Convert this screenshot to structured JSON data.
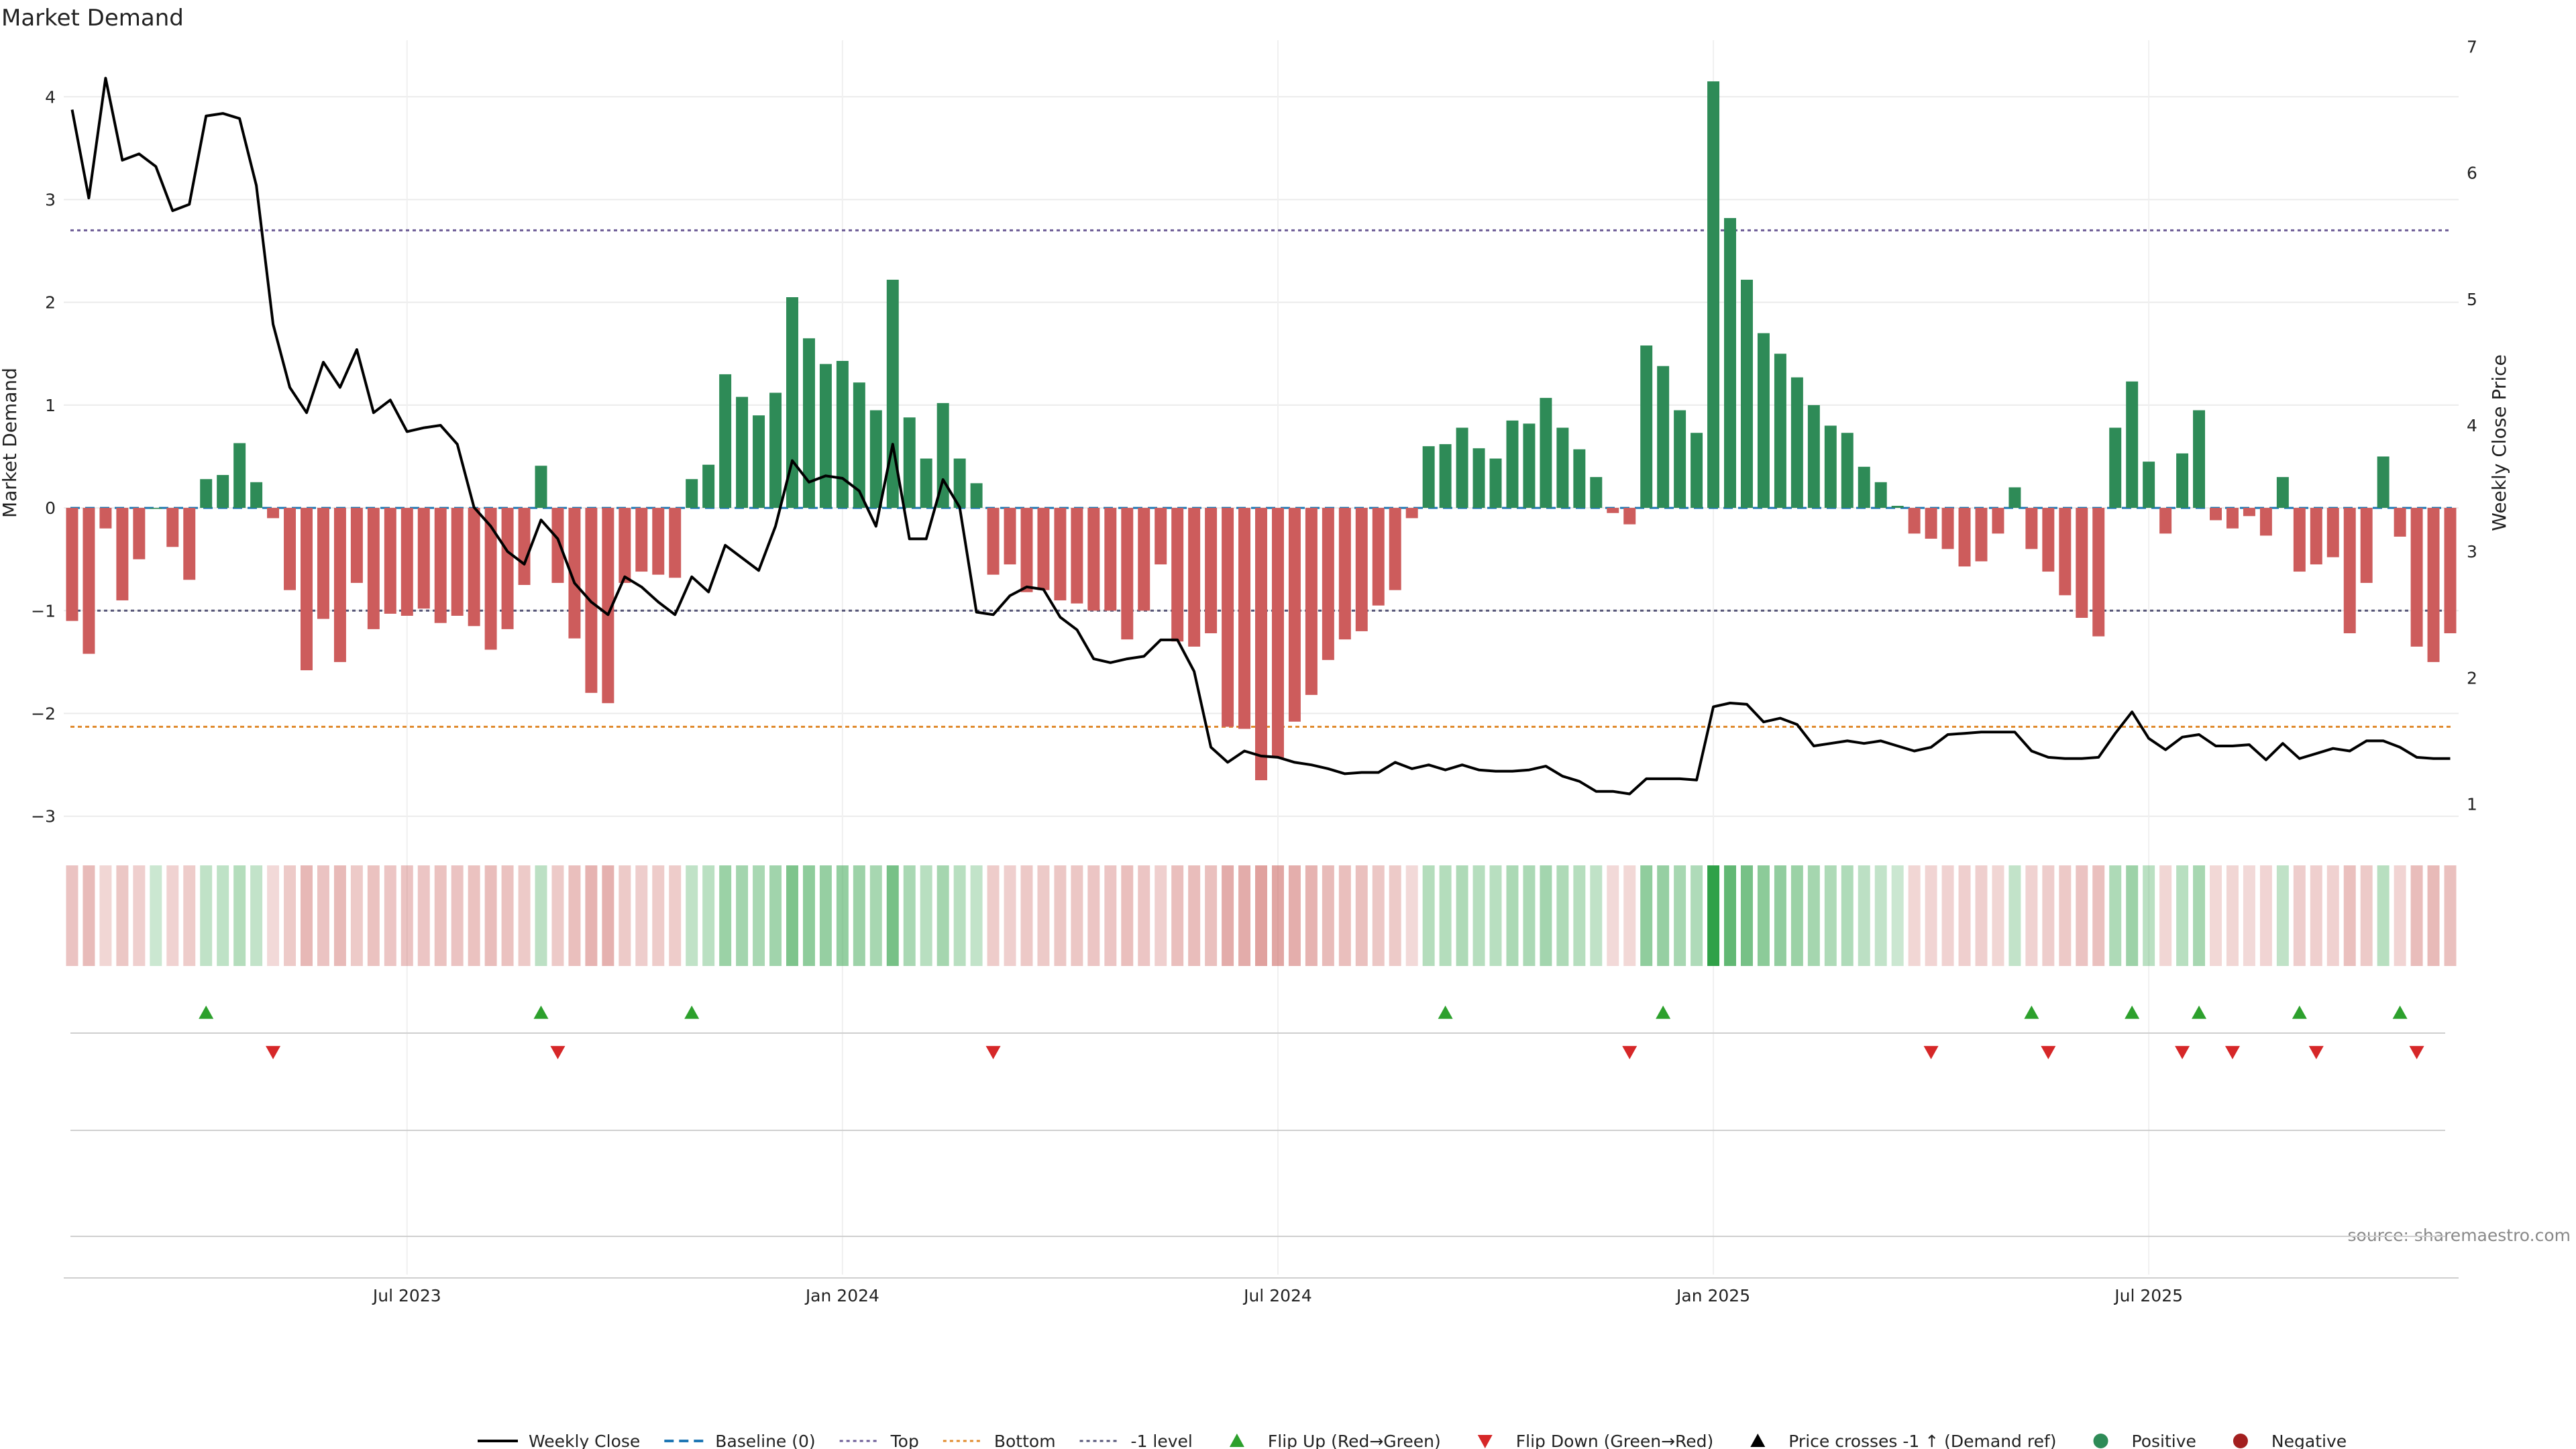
{
  "chart_data": {
    "type": "bar",
    "title": "Market Demand",
    "ylabel": "Market Demand",
    "y2label": "Weekly Close Price",
    "source": "source: sharemaestro.com",
    "ylim": [
      -3.25,
      4.55
    ],
    "y2lim": [
      0.7,
      7.05
    ],
    "y_ticks": [
      -3,
      -2,
      -1,
      0,
      1,
      2,
      3,
      4
    ],
    "y2_ticks": [
      1,
      2,
      3,
      4,
      5,
      6,
      7
    ],
    "x_ticks": [
      {
        "label": "Jul 2023",
        "index": 20
      },
      {
        "label": "Jan 2024",
        "index": 46
      },
      {
        "label": "Jul 2024",
        "index": 72
      },
      {
        "label": "Jan 2025",
        "index": 98
      },
      {
        "label": "Jul 2025",
        "index": 124
      }
    ],
    "reference_lines": {
      "top": 2.7,
      "bottom": -2.13,
      "minus_one": -1.0,
      "baseline": 0
    },
    "colors": {
      "positive": "#2e8b57",
      "negative": "#cd5c5c",
      "price": "#000000",
      "top": "#6b5b95",
      "bottom": "#e08a2c",
      "minus_one": "#555577",
      "baseline": "#1f77b4",
      "flip_up": "#2ca02c",
      "flip_down": "#d62728"
    },
    "demand": [
      -1.1,
      -1.42,
      -0.2,
      -0.9,
      -0.5,
      0,
      -0.38,
      -0.7,
      0.28,
      0.32,
      0.63,
      0.25,
      -0.1,
      -0.8,
      -1.58,
      -1.08,
      -1.5,
      -0.73,
      -1.18,
      -1.03,
      -1.05,
      -0.98,
      -1.12,
      -1.05,
      -1.15,
      -1.38,
      -1.18,
      -0.75,
      0.41,
      -0.73,
      -1.27,
      -1.8,
      -1.9,
      -0.73,
      -0.62,
      -0.65,
      -0.68,
      0.28,
      0.42,
      1.3,
      1.08,
      0.9,
      1.12,
      2.05,
      1.65,
      1.4,
      1.43,
      1.22,
      0.95,
      2.22,
      0.88,
      0.48,
      1.02,
      0.48,
      0.24,
      -0.65,
      -0.55,
      -0.82,
      -0.8,
      -0.9,
      -0.93,
      -1.0,
      -1.0,
      -1.28,
      -1.0,
      -0.55,
      -1.3,
      -1.35,
      -1.22,
      -2.13,
      -2.15,
      -2.65,
      -2.43,
      -2.08,
      -1.82,
      -1.48,
      -1.28,
      -1.2,
      -0.95,
      -0.8,
      -0.1,
      0.6,
      0.62,
      0.78,
      0.58,
      0.48,
      0.85,
      0.82,
      1.07,
      0.78,
      0.57,
      0.3,
      -0.05,
      -0.16,
      1.58,
      1.38,
      0.95,
      0.73,
      4.15,
      2.82,
      2.22,
      1.7,
      1.5,
      1.27,
      1.0,
      0.8,
      0.73,
      0.4,
      0.25,
      0.02,
      -0.25,
      -0.3,
      -0.4,
      -0.57,
      -0.52,
      -0.25,
      0.2,
      -0.4,
      -0.62,
      -0.85,
      -1.07,
      -1.25,
      0.78,
      1.23,
      0.45,
      -0.25,
      0.53,
      0.95,
      -0.12,
      -0.2,
      -0.08,
      -0.27,
      0.3,
      -0.62,
      -0.55,
      -0.48,
      -1.22,
      -0.73,
      0.5,
      -0.28,
      -1.35,
      -1.5,
      -1.22
    ],
    "price": [
      6.5,
      5.8,
      6.75,
      6.1,
      6.15,
      6.05,
      5.7,
      5.75,
      6.45,
      6.47,
      6.43,
      5.9,
      4.8,
      4.3,
      4.1,
      4.5,
      4.3,
      4.6,
      4.1,
      4.2,
      3.95,
      3.98,
      4.0,
      3.85,
      3.35,
      3.2,
      3.0,
      2.9,
      3.25,
      3.1,
      2.75,
      2.6,
      2.5,
      2.8,
      2.72,
      2.6,
      2.5,
      2.8,
      2.68,
      3.05,
      2.95,
      2.85,
      3.2,
      3.72,
      3.55,
      3.6,
      3.58,
      3.48,
      3.2,
      3.85,
      3.1,
      3.1,
      3.57,
      3.35,
      2.52,
      2.5,
      2.65,
      2.72,
      2.7,
      2.48,
      2.38,
      2.15,
      2.12,
      2.15,
      2.17,
      2.3,
      2.3,
      2.05,
      1.45,
      1.33,
      1.42,
      1.38,
      1.37,
      1.33,
      1.31,
      1.28,
      1.24,
      1.25,
      1.25,
      1.33,
      1.28,
      1.31,
      1.27,
      1.31,
      1.27,
      1.26,
      1.26,
      1.27,
      1.3,
      1.22,
      1.18,
      1.1,
      1.1,
      1.08,
      1.2,
      1.2,
      1.2,
      1.19,
      1.77,
      1.8,
      1.79,
      1.65,
      1.68,
      1.63,
      1.46,
      1.48,
      1.5,
      1.48,
      1.5,
      1.46,
      1.42,
      1.45,
      1.55,
      1.56,
      1.57,
      1.57,
      1.57,
      1.42,
      1.37,
      1.36,
      1.36,
      1.37,
      1.56,
      1.73,
      1.52,
      1.43,
      1.53,
      1.55,
      1.46,
      1.46,
      1.47,
      1.35,
      1.48,
      1.36,
      1.4,
      1.44,
      1.42,
      1.5,
      1.5,
      1.45,
      1.37,
      1.36,
      1.36
    ],
    "flip_up": [
      8,
      28,
      37,
      82,
      95,
      117,
      123,
      127,
      133,
      139
    ],
    "flip_down": [
      12,
      29,
      55,
      93,
      111,
      118,
      126,
      129,
      134,
      140
    ],
    "legend": [
      {
        "label": "Weekly Close",
        "kind": "line",
        "color": "#000000"
      },
      {
        "label": "Baseline (0)",
        "kind": "dash",
        "color": "#1f77b4"
      },
      {
        "label": "Top",
        "kind": "dot",
        "color": "#6b5b95"
      },
      {
        "label": "Bottom",
        "kind": "dot",
        "color": "#e08a2c"
      },
      {
        "label": "-1 level",
        "kind": "dot",
        "color": "#555577"
      },
      {
        "label": "Flip Up (Red→Green)",
        "kind": "tri-up",
        "color": "#2ca02c"
      },
      {
        "label": "Flip Down (Green→Red)",
        "kind": "tri-down",
        "color": "#d62728"
      },
      {
        "label": "Price crosses -1 ↑ (Demand ref)",
        "kind": "tri-up",
        "color": "#000000"
      },
      {
        "label": "Positive",
        "kind": "circle",
        "color": "#2e8b57"
      },
      {
        "label": "Negative",
        "kind": "circle",
        "color": "#a31f1f"
      }
    ]
  }
}
